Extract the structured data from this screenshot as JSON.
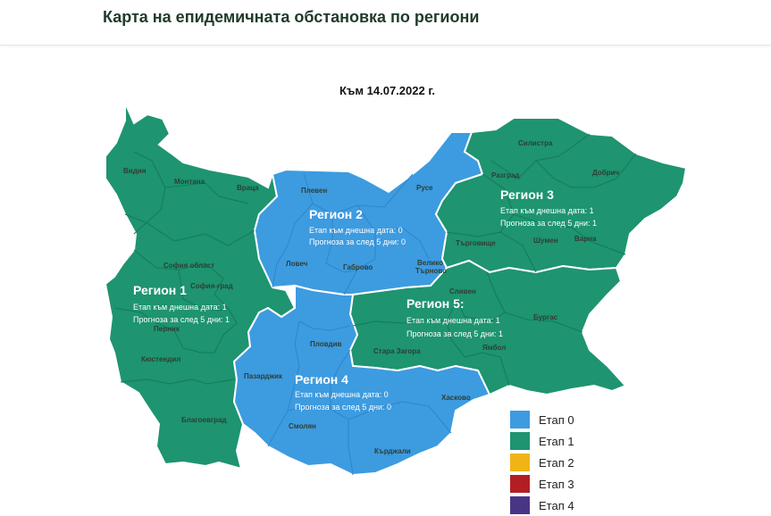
{
  "header": {
    "title": "Карта на епидемичната обстановка по региони"
  },
  "map": {
    "date_label": "Към 14.07.2022 г.",
    "colors": {
      "stage0": "#3d9be0",
      "stage1": "#1e9470",
      "border": "#ffffff",
      "district_line": "#157a5a"
    },
    "regions": [
      {
        "title": "Регион 1",
        "today": "Етап към днешна дата:  1",
        "forecast": "Прогноза за след 5 дни: 1",
        "stage": 1
      },
      {
        "title": "Регион 2",
        "today": "Етап към днешна дата:  0",
        "forecast": "Прогноза за след 5 дни: 0",
        "stage": 0
      },
      {
        "title": "Регион 3",
        "today": "Етап към днешна дата:  1",
        "forecast": "Прогноза за след 5 дни: 1",
        "stage": 1
      },
      {
        "title": "Регион 4",
        "today": "Етап към днешна дата:  0",
        "forecast": "Прогноза за след 5 дни:  0",
        "stage": 0
      },
      {
        "title": "Регион 5:",
        "today": "Етап към днешна дата:  1",
        "forecast": "Прогноза за след 5 дни: 1",
        "stage": 1
      }
    ],
    "districts": {
      "vidin": "Видин",
      "montana": "Монтана",
      "vratsa": "Враца",
      "pleven": "Плевен",
      "ruse": "Русе",
      "silistra": "Силистра",
      "razgrad": "Разград",
      "dobrich": "Добрич",
      "targovishte": "Търговище",
      "shumen": "Шумен",
      "varna": "Варна",
      "lovech": "Ловеч",
      "gabrovo": "Габрово",
      "veliko1": "Велико",
      "veliko2": "Търново",
      "sofia_obl": "София област",
      "sofia_grad": "София-град",
      "pernik": "Перник",
      "kyustendil": "Кюстендил",
      "blagoevgrad": "Благоевград",
      "sliven": "Сливен",
      "burgas": "Бургас",
      "yambol": "Ямбол",
      "stara_zagora": "Стара Загора",
      "plovdiv": "Пловдив",
      "pazardzhik": "Пазарджик",
      "haskovo": "Хасково",
      "smolyan": "Смолян",
      "kardzhali": "Кърджали"
    }
  },
  "legend": {
    "items": [
      {
        "label": "Етап 0",
        "color": "#3d9be0"
      },
      {
        "label": "Етап 1",
        "color": "#1e9470"
      },
      {
        "label": "Етап 2",
        "color": "#f0b416"
      },
      {
        "label": "Етап 3",
        "color": "#b31e23"
      },
      {
        "label": "Етап 4",
        "color": "#4a3585"
      }
    ]
  }
}
